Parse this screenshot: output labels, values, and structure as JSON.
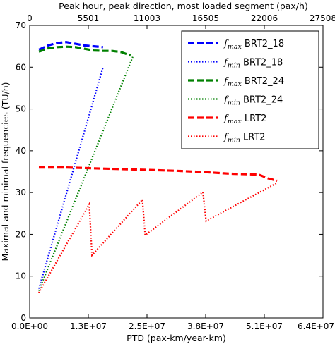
{
  "chart_data": {
    "type": "line",
    "title": "",
    "xlabel": "PTD (pax-km/year-km)",
    "ylabel": "Maximal and minimal frequencies (TU/h)",
    "x2label": "Peak hour, peak direction, most loaded segment (pax/h)",
    "xlim": [
      0,
      64000000
    ],
    "ylim": [
      0,
      70
    ],
    "x_ticks": [
      0,
      12800000,
      25600000,
      38400000,
      51200000,
      64000000
    ],
    "x_tick_labels": [
      "0.0E+00",
      "1.3E+07",
      "2.5E+07",
      "3.8E+07",
      "5.1E+07",
      "6.4E+07"
    ],
    "x2_ticks": [
      0,
      12800000,
      25600000,
      38400000,
      51200000,
      64000000
    ],
    "x2_tick_labels": [
      "0",
      "5501",
      "11003",
      "16505",
      "22006",
      "27508"
    ],
    "y_ticks": [
      0,
      10,
      20,
      30,
      40,
      50,
      60,
      70
    ],
    "y_tick_labels": [
      "0",
      "10",
      "20",
      "30",
      "40",
      "50",
      "60",
      "70"
    ],
    "grid": false,
    "legend_position": "top-right",
    "series": [
      {
        "name": "f_max BRT2_18",
        "color": "#0000ff",
        "style": "dashed",
        "x": [
          2000000,
          4000000,
          6000000,
          8000000,
          10000000,
          12000000,
          14000000,
          16000000
        ],
        "y": [
          64.2,
          65.2,
          65.8,
          66.0,
          65.6,
          65.2,
          65.0,
          64.8
        ]
      },
      {
        "name": "f_min BRT2_18",
        "color": "#0000ff",
        "style": "dotted",
        "x": [
          2000000,
          16000000
        ],
        "y": [
          7.0,
          60.0
        ]
      },
      {
        "name": "f_max BRT2_24",
        "color": "#008000",
        "style": "dashed",
        "x": [
          2000000,
          4000000,
          6000000,
          8000000,
          10000000,
          12000000,
          14000000,
          16000000,
          18000000,
          20000000,
          22000000
        ],
        "y": [
          63.7,
          64.5,
          64.8,
          64.9,
          64.8,
          64.4,
          64.0,
          63.9,
          63.9,
          63.6,
          62.8
        ]
      },
      {
        "name": "f_min BRT2_24",
        "color": "#008000",
        "style": "dotted",
        "x": [
          2000000,
          22500000
        ],
        "y": [
          6.5,
          62.5
        ]
      },
      {
        "name": "f_max LRT2",
        "color": "#ff0000",
        "style": "dashed",
        "x": [
          2000000,
          8000000,
          14000000,
          20000000,
          26000000,
          32000000,
          38000000,
          44000000,
          50000000,
          52000000,
          54000000
        ],
        "y": [
          36.0,
          36.0,
          35.8,
          35.6,
          35.4,
          35.2,
          34.9,
          34.5,
          34.3,
          33.4,
          32.8
        ]
      },
      {
        "name": "f_min LRT2",
        "color": "#ff0000",
        "style": "dotted",
        "x": [
          2000000,
          13000000,
          13600000,
          24600000,
          25200000,
          37800000,
          38500000,
          54000000
        ],
        "y": [
          6.0,
          27.2,
          15.0,
          28.3,
          19.8,
          30.1,
          23.2,
          32.3
        ]
      }
    ]
  },
  "legend": [
    {
      "sym": "f",
      "sub": "max",
      "label": "BRT2_18"
    },
    {
      "sym": "f",
      "sub": "min",
      "label": "BRT2_18"
    },
    {
      "sym": "f",
      "sub": "max",
      "label": "BRT2_24"
    },
    {
      "sym": "f",
      "sub": "min",
      "label": "BRT2_24"
    },
    {
      "sym": "f",
      "sub": "max",
      "label": "LRT2"
    },
    {
      "sym": "f",
      "sub": "min",
      "label": "LRT2"
    }
  ]
}
